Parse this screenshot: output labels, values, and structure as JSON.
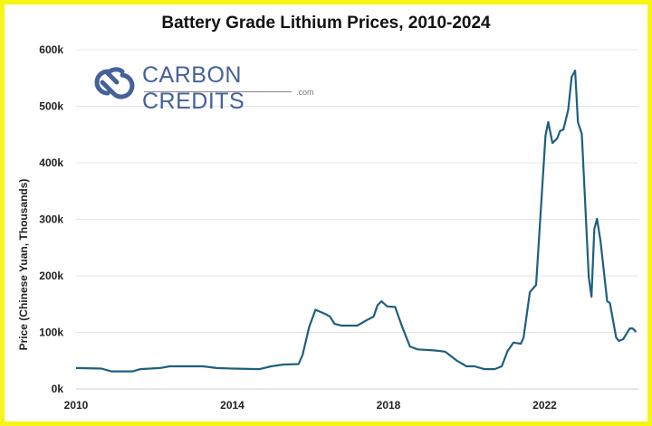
{
  "chart_data": {
    "type": "line",
    "title": "Battery Grade Lithium Prices, 2010-2024",
    "xlabel": "",
    "ylabel": "Price (Chinese Yuan, Thousands)",
    "xlim": [
      2010,
      2024.4
    ],
    "ylim": [
      0,
      600
    ],
    "x_ticks": [
      2010,
      2014,
      2018,
      2022
    ],
    "x_tick_labels": [
      "2010",
      "2014",
      "2018",
      "2022"
    ],
    "y_ticks": [
      0,
      100,
      200,
      300,
      400,
      500,
      600
    ],
    "y_tick_labels": [
      "0k",
      "100k",
      "200k",
      "300k",
      "400k",
      "500k",
      "600k"
    ],
    "grid": "horizontal",
    "line_color": "#1f5f80",
    "series": [
      {
        "x": [
          2010.0,
          2010.65,
          2010.9,
          2011.45,
          2011.65,
          2012.15,
          2012.4,
          2013.25,
          2013.6,
          2014.0,
          2014.7,
          2015.0,
          2015.3,
          2015.7,
          2015.8,
          2015.97,
          2016.13,
          2016.4,
          2016.5,
          2016.62,
          2016.8,
          2017.2,
          2017.45,
          2017.62,
          2017.72,
          2017.82,
          2017.97,
          2018.17,
          2018.35,
          2018.55,
          2018.75,
          2019.2,
          2019.45,
          2019.6,
          2019.75,
          2020.0,
          2020.2,
          2020.45,
          2020.72,
          2020.9,
          2021.05,
          2021.2,
          2021.39,
          2021.46,
          2021.62,
          2021.78,
          2022.02,
          2022.09,
          2022.2,
          2022.32,
          2022.39,
          2022.48,
          2022.6,
          2022.69,
          2022.78,
          2022.85,
          2022.95,
          2023.13,
          2023.2,
          2023.27,
          2023.34,
          2023.43,
          2023.6,
          2023.67,
          2023.83,
          2023.9,
          2024.01,
          2024.18,
          2024.25,
          2024.34
        ],
        "y": [
          37,
          36,
          31,
          31,
          35,
          37,
          40,
          40,
          37,
          36,
          35,
          40,
          43,
          44,
          60,
          110,
          140,
          132,
          128,
          115,
          112,
          112,
          122,
          128,
          148,
          155,
          146,
          145,
          110,
          75,
          70,
          68,
          66,
          58,
          50,
          40,
          40,
          35,
          35,
          40,
          67,
          82,
          80,
          91,
          171,
          184,
          448,
          472,
          435,
          443,
          456,
          459,
          493,
          552,
          563,
          472,
          451,
          197,
          163,
          283,
          301,
          261,
          155,
          152,
          91,
          85,
          88,
          107,
          107,
          101
        ]
      }
    ]
  },
  "logo": {
    "name": "CARBON CREDITS",
    "suffix": ".com",
    "color": "#44619a"
  },
  "frame_color": "#f5f516"
}
